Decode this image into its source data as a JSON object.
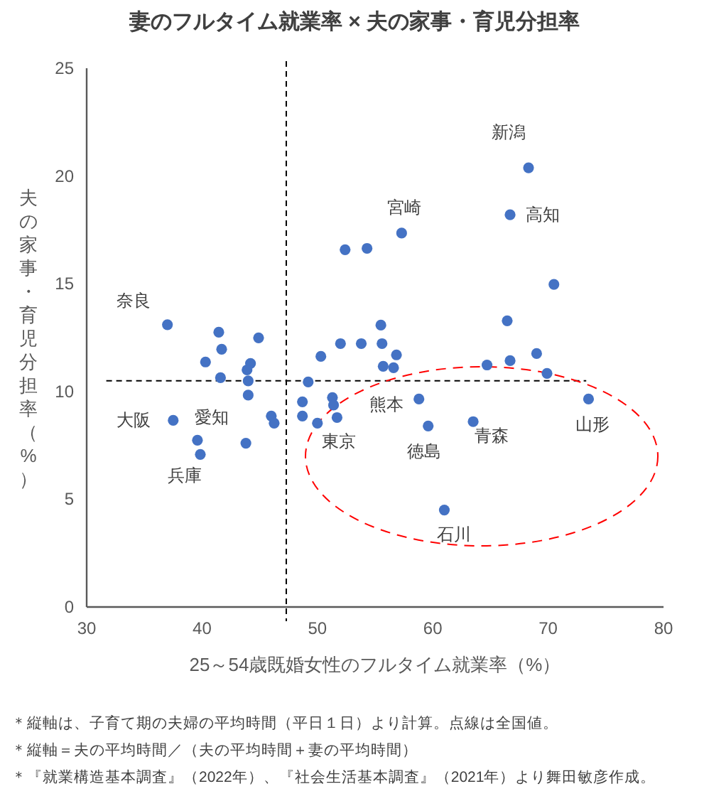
{
  "chart_data": {
    "type": "scatter",
    "title": "妻のフルタイム就業率 × 夫の家事・育児分担率",
    "xlabel": "25～54歳既婚女性のフルタイム就業率（%）",
    "ylabel": "夫の家事・育児分担率（%）",
    "xlim": [
      30,
      80
    ],
    "xticks": [
      30,
      40,
      50,
      60,
      70,
      80
    ],
    "ylim": [
      0,
      25
    ],
    "yticks": [
      0,
      5,
      10,
      15,
      20,
      25
    ],
    "grid": false,
    "marker": "circle",
    "series": [
      {
        "color": "#4472c4",
        "x": [
          37.0,
          41.45,
          44.9,
          41.7,
          40.3,
          44.2,
          43.9,
          41.6,
          44.0,
          44.0,
          37.5,
          46.0,
          46.25,
          39.6,
          39.85,
          43.8,
          49.2,
          48.7,
          48.7,
          50.0,
          50.3,
          52.0,
          53.8,
          51.3,
          51.4,
          51.7,
          55.5,
          55.6,
          56.85,
          55.7,
          56.6,
          58.8,
          59.6,
          63.5,
          61.0,
          64.7,
          66.45,
          66.7,
          69.0,
          69.9,
          73.5,
          70.5,
          68.3,
          66.7,
          57.3,
          52.4,
          54.3
        ],
        "values": [
          13.1,
          12.75,
          12.49,
          11.96,
          11.37,
          11.3,
          11.0,
          10.64,
          10.49,
          9.83,
          8.66,
          8.86,
          8.53,
          7.74,
          7.08,
          7.6,
          10.44,
          9.52,
          8.86,
          8.53,
          11.63,
          12.22,
          12.22,
          9.72,
          9.37,
          8.79,
          13.08,
          12.22,
          11.7,
          11.17,
          11.1,
          9.65,
          8.4,
          8.6,
          4.5,
          11.23,
          13.28,
          11.43,
          11.76,
          10.84,
          9.65,
          14.97,
          20.38,
          18.2,
          17.35,
          16.58,
          16.64
        ]
      }
    ],
    "ref_lines": [
      {
        "axis": "x",
        "value": 47.3,
        "color": "#000000",
        "line_style": "dashed"
      },
      {
        "axis": "y",
        "value": 10.5,
        "color": "#000000",
        "line_style": "dashed"
      }
    ],
    "annotations": [
      {
        "text": "奈良",
        "x": 37.0,
        "y": 13.1
      },
      {
        "text": "大阪",
        "x": 37.5,
        "y": 8.66
      },
      {
        "text": "愛知",
        "x": 39.6,
        "y": 7.74
      },
      {
        "text": "兵庫",
        "x": 39.85,
        "y": 7.08
      },
      {
        "text": "東京",
        "x": 50.0,
        "y": 8.53
      },
      {
        "text": "熊本",
        "x": 58.8,
        "y": 9.65
      },
      {
        "text": "徳島",
        "x": 59.6,
        "y": 8.4
      },
      {
        "text": "青森",
        "x": 63.5,
        "y": 8.6
      },
      {
        "text": "石川",
        "x": 61.0,
        "y": 4.5
      },
      {
        "text": "山形",
        "x": 73.5,
        "y": 9.65
      },
      {
        "text": "新潟",
        "x": 68.3,
        "y": 20.38
      },
      {
        "text": "高知",
        "x": 66.7,
        "y": 18.2
      },
      {
        "text": "宮崎",
        "x": 57.3,
        "y": 17.35
      },
      "＊縦軸は、子育て期の夫婦の平均時間（平日１日）より計算。点線は全国値。",
      "＊縦軸＝夫の平均時間／（夫の平均時間＋妻の平均時間）",
      "＊『就業構造基本調査』（2022年）、『社会生活基本調査』（2021年）より舞田敏彦作成。"
    ]
  }
}
